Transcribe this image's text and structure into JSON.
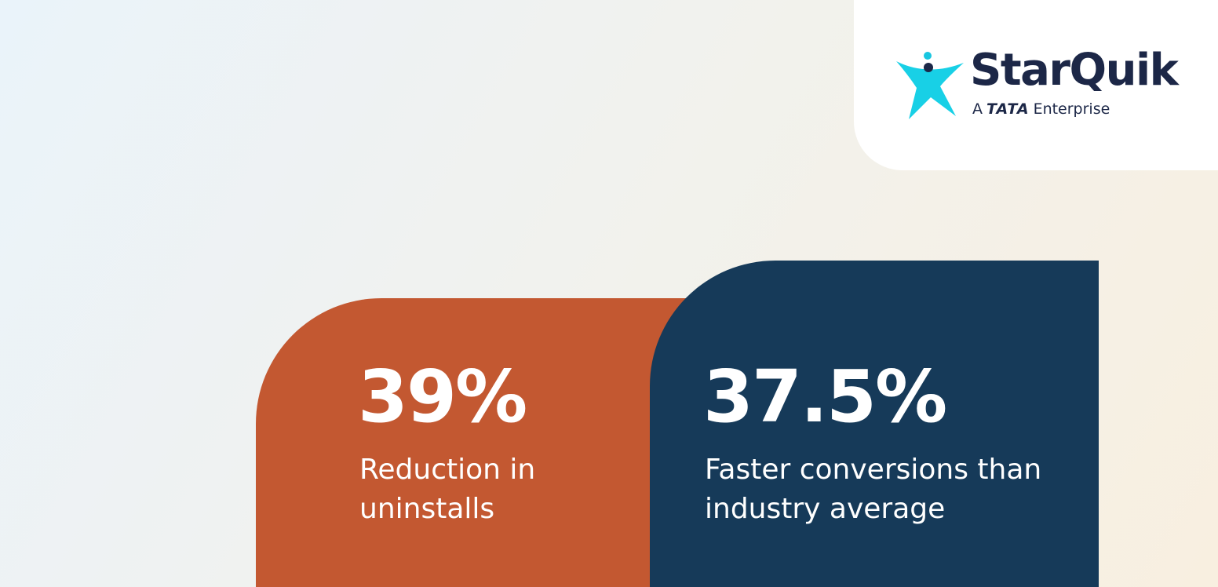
{
  "logo": {
    "brand": "StarQuik",
    "tagline_prefix": "A",
    "tagline_group": "TATA",
    "tagline_suffix": "Enterprise"
  },
  "stats": [
    {
      "value": "39%",
      "label": "Reduction in uninstalls"
    },
    {
      "value": "37.5%",
      "label": "Faster conversions than industry average"
    }
  ]
}
